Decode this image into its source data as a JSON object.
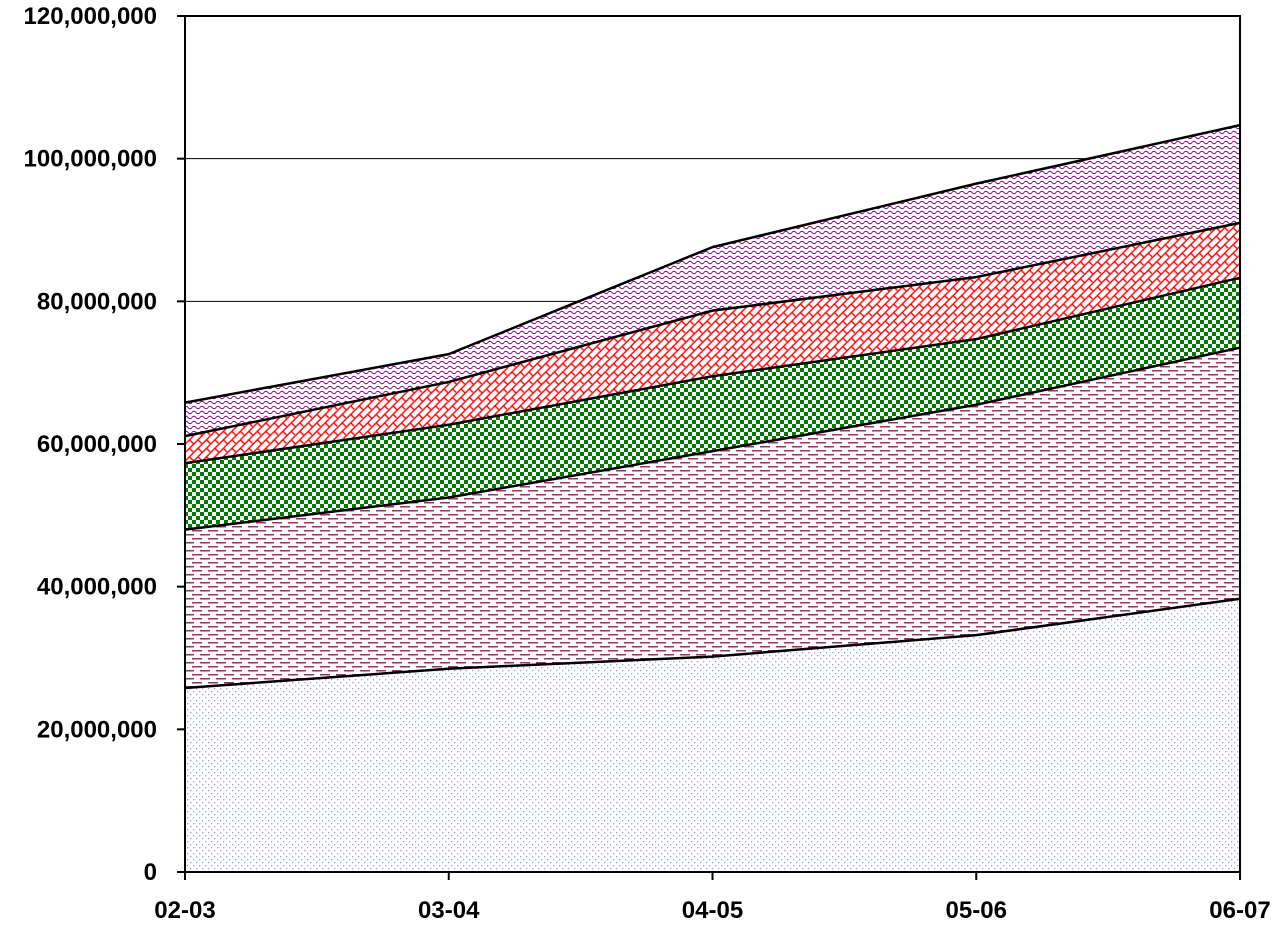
{
  "chart_data": {
    "type": "area",
    "stacked": true,
    "title": "",
    "xlabel": "",
    "ylabel": "",
    "categories": [
      "02-03",
      "03-04",
      "04-05",
      "05-06",
      "06-07"
    ],
    "ylim": [
      0,
      120000000
    ],
    "yticks": [
      0,
      20000000,
      40000000,
      60000000,
      80000000,
      100000000,
      120000000
    ],
    "ytick_labels": [
      "0",
      "20,000,000",
      "40,000,000",
      "60,000,000",
      "80,000,000",
      "100,000,000",
      "120,000,000"
    ],
    "grid": {
      "horizontal": true,
      "vertical": false
    },
    "legend": "none",
    "series": [
      {
        "values": [
          25800000,
          28500000,
          30200000,
          33200000,
          38300000
        ],
        "color": "#9999ff",
        "pattern": "dots"
      },
      {
        "values": [
          22200000,
          24000000,
          28800000,
          32300000,
          35200000
        ],
        "color": "#993366",
        "pattern": "dashes"
      },
      {
        "values": [
          9300000,
          10200000,
          10500000,
          9200000,
          9800000
        ],
        "color": "#007a00",
        "pattern": "checker"
      },
      {
        "values": [
          3800000,
          6000000,
          9200000,
          8700000,
          7700000
        ],
        "color": "#ff0000",
        "pattern": "brick"
      },
      {
        "values": [
          4700000,
          3900000,
          8900000,
          13100000,
          13700000
        ],
        "color": "#800080",
        "pattern": "wave"
      }
    ]
  }
}
